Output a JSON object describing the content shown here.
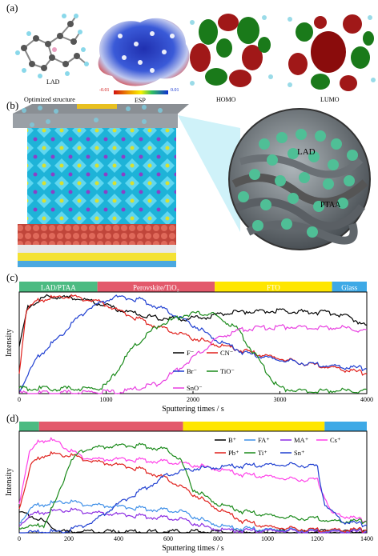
{
  "panels": {
    "a": {
      "label": "(a)",
      "captions": [
        "Optimized structure",
        "ESP",
        "HOMO",
        "LUMO"
      ],
      "molecule_label": "LAD",
      "esp_min": "-0.01",
      "esp_max": "0.01"
    },
    "b": {
      "label": "(b)",
      "zoom_labels": [
        "LAD",
        "PTAA"
      ]
    },
    "c": {
      "label": "(c)"
    },
    "d": {
      "label": "(d)"
    }
  },
  "chart_data": [
    {
      "type": "line",
      "panel": "c",
      "xlabel": "Sputtering times / s",
      "ylabel": "Intensity",
      "xlim": [
        0,
        4000
      ],
      "xticks": [
        0,
        1000,
        2000,
        3000,
        4000
      ],
      "layer_bands": [
        {
          "name": "LAD/PTAA",
          "from": 0,
          "to": 900,
          "color": "#4cbb82"
        },
        {
          "name": "Perovskite/TiO₂",
          "from": 900,
          "to": 2250,
          "color": "#e3596b"
        },
        {
          "name": "FTO",
          "from": 2250,
          "to": 3600,
          "color": "#ffe600"
        },
        {
          "name": "Glass",
          "from": 3600,
          "to": 4000,
          "color": "#3ea9e6"
        }
      ],
      "series": [
        {
          "name": "F⁻",
          "color": "#000000",
          "x": [
            0,
            100,
            300,
            600,
            900,
            1200,
            1500,
            1800,
            2100,
            2400,
            2700,
            3000,
            3300,
            3600,
            3800,
            4000
          ],
          "y": [
            0.45,
            0.86,
            0.96,
            0.95,
            0.9,
            0.82,
            0.76,
            0.74,
            0.75,
            0.8,
            0.82,
            0.82,
            0.81,
            0.8,
            0.76,
            0.67
          ]
        },
        {
          "name": "CN⁻",
          "color": "#e0201c",
          "x": [
            0,
            80,
            200,
            500,
            900,
            1200,
            1600,
            2000,
            2400,
            2800,
            3200,
            3600,
            4000
          ],
          "y": [
            0.2,
            0.82,
            0.92,
            0.97,
            0.92,
            0.8,
            0.66,
            0.55,
            0.46,
            0.38,
            0.31,
            0.26,
            0.2
          ]
        },
        {
          "name": "Br⁻",
          "color": "#1f3fd1",
          "x": [
            0,
            200,
            500,
            800,
            1100,
            1400,
            1700,
            2000,
            2300,
            2600,
            3000,
            3400,
            3800,
            4000
          ],
          "y": [
            0.02,
            0.35,
            0.6,
            0.85,
            0.96,
            0.93,
            0.82,
            0.68,
            0.52,
            0.4,
            0.33,
            0.29,
            0.26,
            0.25
          ]
        },
        {
          "name": "TiO⁻",
          "color": "#1a8a1a",
          "x": [
            0,
            900,
            1000,
            1100,
            1300,
            1600,
            1900,
            2200,
            2500,
            2700,
            2900,
            3000,
            3200,
            4000
          ],
          "y": [
            0.05,
            0.05,
            0.08,
            0.2,
            0.45,
            0.68,
            0.78,
            0.8,
            0.65,
            0.4,
            0.15,
            0.05,
            0.03,
            0.03
          ]
        },
        {
          "name": "SnO⁻",
          "color": "#e83fe0",
          "x": [
            0,
            1200,
            1600,
            2000,
            2300,
            2600,
            3000,
            3400,
            3800,
            4000
          ],
          "y": [
            0.0,
            0.02,
            0.1,
            0.35,
            0.56,
            0.64,
            0.66,
            0.66,
            0.65,
            0.62
          ]
        }
      ]
    },
    {
      "type": "line",
      "panel": "d",
      "xlabel": "Sputtering times / s",
      "ylabel": "Intensity",
      "xlim": [
        0,
        1400
      ],
      "xticks": [
        0,
        200,
        400,
        600,
        800,
        1000,
        1200,
        1400
      ],
      "layer_bands": [
        {
          "from": 0,
          "to": 80,
          "color": "#4cbb82"
        },
        {
          "from": 80,
          "to": 660,
          "color": "#e3596b"
        },
        {
          "from": 660,
          "to": 1230,
          "color": "#ffe600"
        },
        {
          "from": 1230,
          "to": 1400,
          "color": "#3ea9e6"
        }
      ],
      "series": [
        {
          "name": "B⁺",
          "color": "#000000",
          "x": [
            0,
            30,
            60,
            100,
            130,
            160,
            200,
            260,
            1400
          ],
          "y": [
            0.2,
            0.19,
            0.16,
            0.12,
            0.06,
            0.02,
            0.01,
            0.01,
            0.01
          ]
        },
        {
          "name": "FA⁺",
          "color": "#3e8fe8",
          "x": [
            0,
            60,
            120,
            170,
            250,
            350,
            450,
            550,
            650,
            750,
            850,
            1000,
            1200,
            1400
          ],
          "y": [
            0.1,
            0.28,
            0.3,
            0.33,
            0.3,
            0.28,
            0.26,
            0.24,
            0.22,
            0.12,
            0.05,
            0.03,
            0.02,
            0.02
          ]
        },
        {
          "name": "MA⁺",
          "color": "#8a2be2",
          "x": [
            0,
            60,
            120,
            170,
            250,
            350,
            450,
            550,
            650,
            750,
            850,
            1000,
            1200,
            1400
          ],
          "y": [
            0.08,
            0.2,
            0.22,
            0.24,
            0.22,
            0.2,
            0.18,
            0.16,
            0.14,
            0.06,
            0.02,
            0.02,
            0.01,
            0.01
          ]
        },
        {
          "name": "Cs⁺",
          "color": "#ff3fe8",
          "x": [
            0,
            40,
            80,
            120,
            160,
            200,
            260,
            320,
            400,
            500,
            600,
            700,
            800,
            900,
            1000,
            1100,
            1200,
            1260,
            1300,
            1400
          ],
          "y": [
            0.3,
            0.82,
            0.95,
            0.96,
            0.94,
            0.85,
            0.78,
            0.76,
            0.76,
            0.75,
            0.73,
            0.7,
            0.66,
            0.6,
            0.58,
            0.55,
            0.55,
            0.2,
            0.18,
            0.12
          ]
        },
        {
          "name": "Pb⁺",
          "color": "#e0201c",
          "x": [
            0,
            50,
            100,
            150,
            200,
            300,
            400,
            500,
            600,
            700,
            800,
            900,
            1000,
            1100,
            1200,
            1400
          ],
          "y": [
            0.25,
            0.72,
            0.8,
            0.82,
            0.8,
            0.74,
            0.7,
            0.65,
            0.55,
            0.4,
            0.25,
            0.12,
            0.06,
            0.04,
            0.03,
            0.03
          ]
        },
        {
          "name": "Ti⁺",
          "color": "#1a8a1a",
          "x": [
            0,
            100,
            150,
            200,
            250,
            300,
            400,
            500,
            600,
            650,
            700,
            800,
            900,
            1000,
            1100,
            1200,
            1260,
            1400
          ],
          "y": [
            0.05,
            0.08,
            0.35,
            0.7,
            0.85,
            0.88,
            0.9,
            0.9,
            0.85,
            0.75,
            0.45,
            0.3,
            0.22,
            0.18,
            0.15,
            0.15,
            0.12,
            0.12
          ]
        },
        {
          "name": "Sn⁺",
          "color": "#1f3fd1",
          "x": [
            0,
            200,
            300,
            400,
            500,
            600,
            700,
            800,
            900,
            1000,
            1100,
            1200,
            1230,
            1300,
            1400
          ],
          "y": [
            0.0,
            0.02,
            0.12,
            0.3,
            0.45,
            0.6,
            0.66,
            0.68,
            0.69,
            0.7,
            0.7,
            0.69,
            0.3,
            0.12,
            0.08
          ]
        }
      ]
    }
  ]
}
